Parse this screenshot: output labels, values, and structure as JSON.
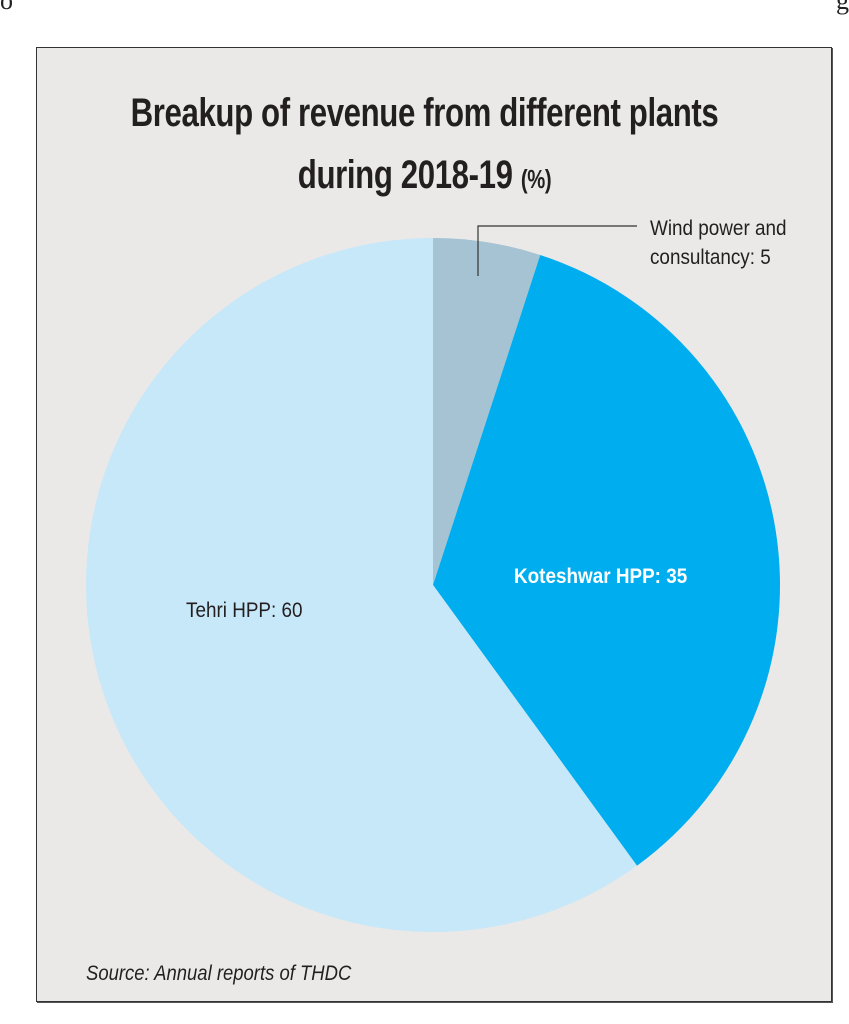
{
  "edge_fragments": {
    "left": "o",
    "right": "g"
  },
  "chart_data": {
    "type": "pie",
    "title": "Breakup of revenue from different plants during 2018-19",
    "title_unit": "(%)",
    "start": "top, clockwise",
    "slices": [
      {
        "label": "Wind power and consultancy",
        "label_lines": [
          "Wind power and",
          "consultancy: 5"
        ],
        "value": 5,
        "color": "#a5c3d3"
      },
      {
        "label": "Koteshwar HPP",
        "label_text": "Koteshwar HPP: 35",
        "value": 35,
        "color": "#00adef"
      },
      {
        "label": "Tehri HPP",
        "label_text": "Tehri HPP: 60",
        "value": 60,
        "color": "#c7e8f8"
      }
    ],
    "source": "Source: Annual reports of THDC"
  }
}
